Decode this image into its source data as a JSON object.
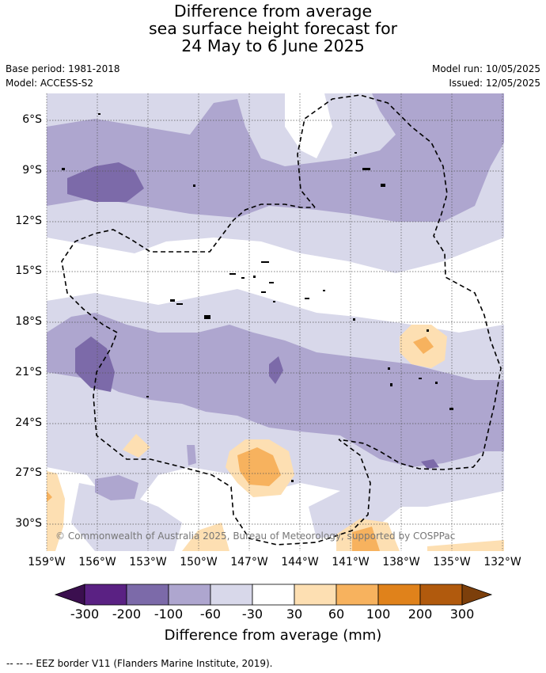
{
  "title": {
    "line1": "Difference from average",
    "line2": "sea surface height forecast for",
    "line3": "24 May to 6 June 2025"
  },
  "meta": {
    "base_period": "Base period: 1981-2018",
    "model": "Model: ACCESS-S2",
    "model_run": "Model run: 10/05/2025",
    "issued": "Issued: 12/05/2025"
  },
  "map": {
    "lat_labels": [
      "6°S",
      "9°S",
      "12°S",
      "15°S",
      "18°S",
      "21°S",
      "24°S",
      "27°S",
      "30°S"
    ],
    "lon_labels": [
      "159°W",
      "156°W",
      "153°W",
      "150°W",
      "147°W",
      "144°W",
      "141°W",
      "138°W",
      "135°W",
      "132°W"
    ],
    "copyright": "© Commonwealth of Australia 2025, Bureau of Meteorology, supported by COSPPac",
    "grid": true,
    "eez_border": "dashed"
  },
  "colorbar": {
    "ticks": [
      "-300",
      "-200",
      "-100",
      "-60",
      "-30",
      "30",
      "60",
      "100",
      "200",
      "300"
    ],
    "colors": {
      "below_-300": "#3b0f4f",
      "-300_-200": "#5a2183",
      "-200_-100": "#7c6aa9",
      "-100_-60": "#aea6cf",
      "-60_-30": "#d8d8ea",
      "-30_30": "#ffffff",
      "30_60": "#fddfb2",
      "60_100": "#f7b25e",
      "100_200": "#e0821b",
      "200_300": "#b15a0d",
      "above_300": "#7c3f0b"
    },
    "label": "Difference from average (mm)"
  },
  "footer": "--  --  -- EEZ border V11 (Flanders Marine Institute, 2019)."
}
